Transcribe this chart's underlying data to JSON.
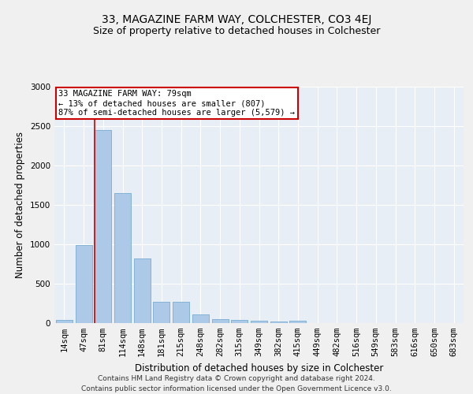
{
  "title": "33, MAGAZINE FARM WAY, COLCHESTER, CO3 4EJ",
  "subtitle": "Size of property relative to detached houses in Colchester",
  "xlabel": "Distribution of detached houses by size in Colchester",
  "ylabel": "Number of detached properties",
  "footer_line1": "Contains HM Land Registry data © Crown copyright and database right 2024.",
  "footer_line2": "Contains public sector information licensed under the Open Government Licence v3.0.",
  "categories": [
    "14sqm",
    "47sqm",
    "81sqm",
    "114sqm",
    "148sqm",
    "181sqm",
    "215sqm",
    "248sqm",
    "282sqm",
    "315sqm",
    "349sqm",
    "382sqm",
    "415sqm",
    "449sqm",
    "482sqm",
    "516sqm",
    "549sqm",
    "583sqm",
    "616sqm",
    "650sqm",
    "683sqm"
  ],
  "values": [
    45,
    990,
    2450,
    1650,
    820,
    275,
    270,
    115,
    48,
    42,
    30,
    20,
    30,
    0,
    0,
    0,
    0,
    0,
    0,
    0,
    0
  ],
  "bar_color": "#adc9e8",
  "bar_edge_color": "#7aafd4",
  "vline_color": "#cc0000",
  "annotation_text": "33 MAGAZINE FARM WAY: 79sqm\n← 13% of detached houses are smaller (807)\n87% of semi-detached houses are larger (5,579) →",
  "annotation_box_color": "#ffffff",
  "annotation_box_edge_color": "#cc0000",
  "ylim": [
    0,
    3000
  ],
  "yticks": [
    0,
    500,
    1000,
    1500,
    2000,
    2500,
    3000
  ],
  "bg_color": "#e8eef5",
  "grid_color": "#ffffff",
  "title_fontsize": 10,
  "subtitle_fontsize": 9,
  "axis_label_fontsize": 8.5,
  "tick_fontsize": 7.5,
  "annotation_fontsize": 7.5,
  "footer_fontsize": 6.5
}
